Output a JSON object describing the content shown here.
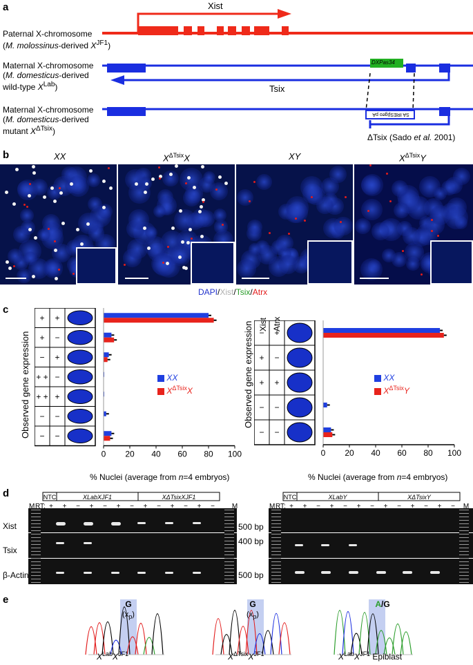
{
  "panel_a": {
    "label": "a",
    "xist_label": "Xist",
    "tsix_label": "Tsix",
    "paternal": {
      "line1": "Paternal X-chromosome",
      "line2_prefix": "(",
      "species": "M. molossinus",
      "line2_suffix": "-derived ",
      "allele": "X",
      "allele_sup": "JF1",
      "close": ")"
    },
    "maternal_wt": {
      "line1": "Maternal X-chromosome",
      "line2_prefix": "(",
      "species": "M. domesticus",
      "line2_suffix": "-derived",
      "line3": "wild-type ",
      "allele": "X",
      "allele_sup": "Lab",
      "close": ")"
    },
    "maternal_mut": {
      "line1": "Maternal X-chromosome",
      "line2_prefix": "(",
      "species": "M. domesticus",
      "line2_suffix": "-derived",
      "line3": "mutant ",
      "allele": "X",
      "allele_sup": "ΔTsix",
      "close": ")"
    },
    "dxpas_label": "DXPas34",
    "deletion_box": "SA  IRESβgeo  pA",
    "deletion_ref_prefix": "ΔTsix (Sado ",
    "deletion_ref_etal": "et al.",
    "deletion_ref_suffix": " 2001)"
  },
  "panel_b": {
    "label": "b",
    "titles": [
      {
        "main": "XX",
        "sup": ""
      },
      {
        "main": "X",
        "sup": "ΔTsix",
        "after": "X"
      },
      {
        "main": "XY",
        "sup": ""
      },
      {
        "main": "X",
        "sup": "ΔTsix",
        "after": "Y"
      }
    ],
    "legend": {
      "dapi": "DAPI",
      "slash1": "/",
      "xist": "Xist",
      "slash2": "/",
      "tsix": "Tsix",
      "slash3": "/",
      "atrx": "Atrx"
    },
    "colors": {
      "dapi": "#2233cc",
      "xist": "#b0b0b0",
      "tsix": "#2a9d2a",
      "atrx": "#e21b1b"
    }
  },
  "panel_c": {
    "label": "c",
    "ylabel": "Observed gene expression",
    "col_headers": [
      "Xist",
      "Atrx"
    ],
    "xlabel_prefix": "% Nuclei (average from ",
    "xlabel_n": "n",
    "xlabel_suffix": "=4 embryos)",
    "xticks": [
      "0",
      "20",
      "40",
      "60",
      "80",
      "100"
    ],
    "left_rows": [
      [
        "+",
        "+"
      ],
      [
        "+",
        "−"
      ],
      [
        "−",
        "+"
      ],
      [
        "+ +",
        "−"
      ],
      [
        "+ +",
        "+"
      ],
      [
        "−",
        "−"
      ],
      [
        "−",
        "−"
      ]
    ],
    "right_rows": [
      [
        "−",
        "+"
      ],
      [
        "+",
        "−"
      ],
      [
        "+",
        "+"
      ],
      [
        "−",
        "−"
      ],
      [
        "−",
        "−"
      ]
    ],
    "left_legend": [
      {
        "main": "XX",
        "sup": "",
        "after": "",
        "color": "#1f3fe0"
      },
      {
        "main": "X",
        "sup": "ΔTsix",
        "after": "X",
        "color": "#e8231c"
      }
    ],
    "right_legend": [
      {
        "main": "XX",
        "sup": "",
        "after": "",
        "color": "#1f3fe0"
      },
      {
        "main": "X",
        "sup": "ΔTsix",
        "after": "Y",
        "color": "#e8231c"
      }
    ]
  },
  "chart_data": [
    {
      "type": "bar",
      "orientation": "horizontal",
      "categories": [
        "Xist+ Atrx+",
        "Xist+ Atrx−",
        "Xist− Atrx+",
        "Xist++ Atrx−",
        "Xist++ Atrx+",
        "Xist− Atrx− (row 6)",
        "Xist− Atrx− (row 7)"
      ],
      "series": [
        {
          "name": "XX",
          "values": [
            80,
            6,
            4,
            0.5,
            0.5,
            2,
            6
          ],
          "color": "#1f3fe0"
        },
        {
          "name": "XΔTsixX",
          "values": [
            84,
            8,
            3,
            0,
            0,
            0,
            5
          ],
          "color": "#e8231c"
        }
      ],
      "xlim": [
        0,
        100
      ],
      "xlabel": "% Nuclei (average from n=4 embryos)",
      "ylabel": "Observed gene expression"
    },
    {
      "type": "bar",
      "orientation": "horizontal",
      "categories": [
        "Xist− Atrx+",
        "Xist+ Atrx−",
        "Xist+ Atrx+",
        "Xist− Atrx− (row 4)",
        "Xist− Atrx− (row 5)"
      ],
      "series": [
        {
          "name": "XX",
          "values": [
            89,
            0,
            0,
            3,
            6
          ],
          "color": "#1f3fe0"
        },
        {
          "name": "XΔTsixY",
          "values": [
            92,
            0,
            0,
            0,
            7
          ],
          "color": "#e8231c"
        }
      ],
      "xlim": [
        0,
        100
      ],
      "xlabel": "% Nuclei (average from n=4 embryos)",
      "ylabel": "Observed gene expression"
    }
  ],
  "panel_d": {
    "label": "d",
    "left": {
      "m_label": "M",
      "rt_label": "RT:",
      "rt_signs": [
        "+",
        "+",
        "−",
        "+",
        "−",
        "+",
        "−",
        "+",
        "−",
        "+",
        "−",
        "+",
        "−"
      ],
      "ntc": "NTC",
      "group1": {
        "main": "X",
        "sup": "Lab",
        "main2": "X",
        "sup2": "JF1"
      },
      "group2": {
        "main": "X",
        "sup": "ΔTsix",
        "main2": "X",
        "sup2": "JF1"
      },
      "m_right": "M"
    },
    "right": {
      "m_label": "M",
      "rt_label": "RT:",
      "rt_signs": [
        "+",
        "+",
        "−",
        "+",
        "−",
        "+",
        "−",
        "+",
        "−",
        "+",
        "−",
        "+",
        "−"
      ],
      "ntc": "NTC",
      "group1": {
        "main": "X",
        "sup": "Lab",
        "main2": "Y",
        "sup2": ""
      },
      "group2": {
        "main": "X",
        "sup": "ΔTsix",
        "main2": "Y",
        "sup2": ""
      },
      "m_right": "M"
    },
    "row_labels": [
      "Xist",
      "Tsix",
      "β-Actin"
    ],
    "size_markers": [
      "500 bp",
      "400 bp",
      "500 bp"
    ]
  },
  "panel_e": {
    "label": "e",
    "traces": [
      {
        "base": "G",
        "sub_prefix": "(x",
        "sub": "p",
        "sub_suffix": ")",
        "caption_main": "X",
        "caption_sup": "Lab",
        "caption_main2": "X",
        "caption_sup2": "JF1",
        "caption_extra": ""
      },
      {
        "base": "G",
        "sub_prefix": "(x",
        "sub": "p",
        "sub_suffix": ")",
        "caption_main": "X",
        "caption_sup": "ΔTsix",
        "caption_main2": "X",
        "caption_sup2": "JF1",
        "caption_extra": ""
      },
      {
        "base_a": "A",
        "base_sep": "/",
        "base_g": "G",
        "caption_main": "X",
        "caption_sup": "Lab",
        "caption_main2": "X",
        "caption_sup2": "JF1",
        "caption_extra": " Epiblast"
      }
    ]
  }
}
